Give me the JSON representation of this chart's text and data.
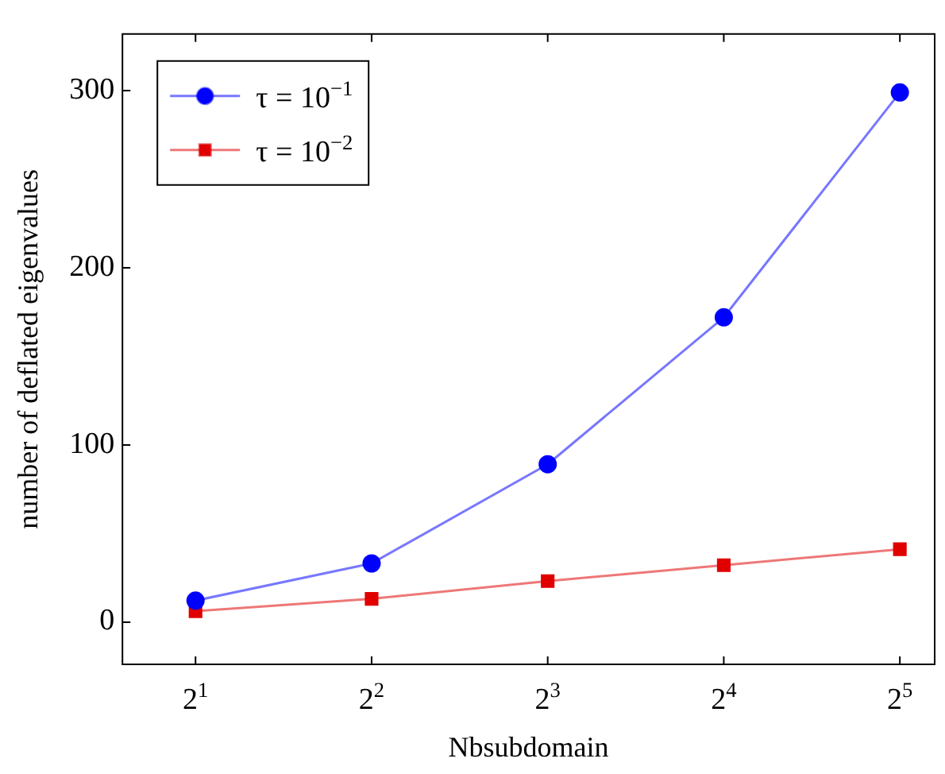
{
  "chart_data": {
    "type": "line",
    "xlabel": "Nbsubdomain",
    "ylabel": "number of deflated eigenvalues",
    "log": "x",
    "x": [
      2,
      4,
      8,
      16,
      32
    ],
    "xlim": [
      1.5,
      36.7
    ],
    "xticks": [
      {
        "value": 2,
        "label": "2$^{1}$"
      },
      {
        "value": 4,
        "label": "2$^{2}$"
      },
      {
        "value": 8,
        "label": "2$^{3}$"
      },
      {
        "value": 16,
        "label": "2$^{4}$"
      },
      {
        "value": 32,
        "label": "2$^{5}$"
      }
    ],
    "ylim": [
      -24,
      332
    ],
    "yticks": [
      0,
      100,
      200,
      300
    ],
    "grid": false,
    "legend": "top left",
    "line_style": "solid",
    "series": [
      {
        "name": "τ = 10$^{−1}$",
        "color": "#0000ff",
        "marker": "circle",
        "values": [
          12,
          33,
          89,
          172,
          299
        ]
      },
      {
        "name": "τ = 10$^{−2}$",
        "color": "#e00000",
        "marker": "square",
        "values": [
          6,
          13,
          23,
          32,
          41
        ]
      }
    ]
  }
}
